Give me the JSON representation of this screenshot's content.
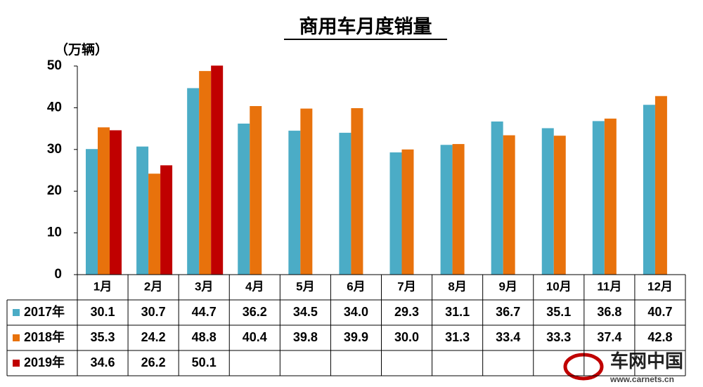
{
  "chart_data": {
    "type": "bar",
    "title": "商用车月度销量",
    "y_label": "（万辆）",
    "categories": [
      "1月",
      "2月",
      "3月",
      "4月",
      "5月",
      "6月",
      "7月",
      "8月",
      "9月",
      "10月",
      "11月",
      "12月"
    ],
    "series": [
      {
        "name": "2017年",
        "color": "#4bacc6",
        "values": [
          30.1,
          30.7,
          44.7,
          36.2,
          34.5,
          34.0,
          29.3,
          31.1,
          36.7,
          35.1,
          36.8,
          40.7
        ],
        "value_labels": [
          "30.1",
          "30.7",
          "44.7",
          "36.2",
          "34.5",
          "34.0",
          "29.3",
          "31.1",
          "36.7",
          "35.1",
          "36.8",
          "40.7"
        ]
      },
      {
        "name": "2018年",
        "color": "#e8720c",
        "values": [
          35.3,
          24.2,
          48.8,
          40.4,
          39.8,
          39.9,
          30.0,
          31.3,
          33.4,
          33.3,
          37.4,
          42.8
        ],
        "value_labels": [
          "35.3",
          "24.2",
          "48.8",
          "40.4",
          "39.8",
          "39.9",
          "30.0",
          "31.3",
          "33.4",
          "33.3",
          "37.4",
          "42.8"
        ]
      },
      {
        "name": "2019年",
        "color": "#c00000",
        "values": [
          34.6,
          26.2,
          50.1,
          null,
          null,
          null,
          null,
          null,
          null,
          null,
          null,
          null
        ],
        "value_labels": [
          "34.6",
          "26.2",
          "50.1",
          null,
          null,
          null,
          null,
          null,
          null,
          null,
          null,
          null
        ]
      }
    ],
    "ylim": [
      0,
      50
    ],
    "yticks": [
      0,
      10,
      20,
      30,
      40,
      50
    ],
    "grid": false
  },
  "watermark": {
    "name": "车网中国",
    "url": "www.carnets.cn"
  }
}
